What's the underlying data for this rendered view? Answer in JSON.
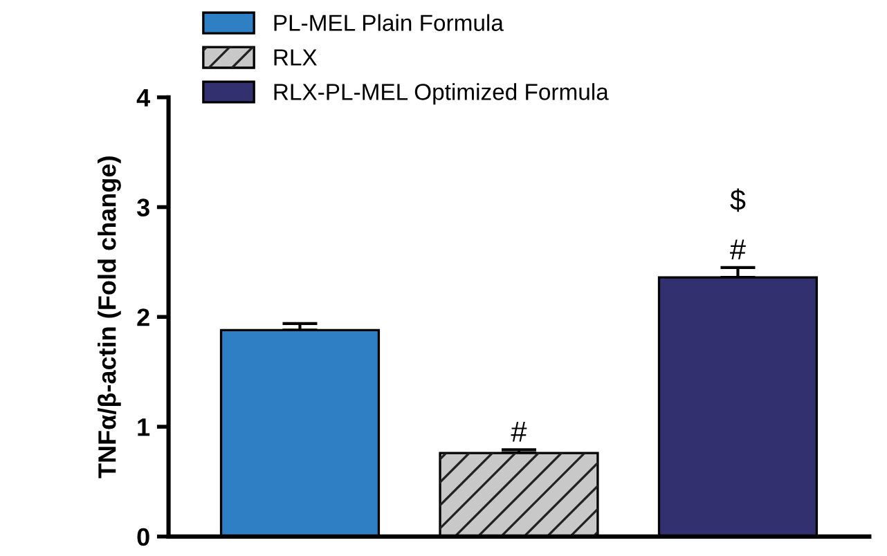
{
  "chart_data": {
    "type": "bar",
    "ylabel": "TNFα/β-actin (Fold change)",
    "categories": [
      null,
      null,
      null
    ],
    "series": [
      {
        "name": "PL-MEL Plain Formula",
        "color": "#2f7fc4",
        "values": [
          1.88,
          null,
          null
        ],
        "errors": [
          0.06,
          null,
          null
        ],
        "value_labels": [
          null,
          null,
          null
        ]
      },
      {
        "name": "RLX",
        "color": "#c8c8c8",
        "values": [
          null,
          0.76,
          null
        ],
        "errors": [
          null,
          0.03,
          null
        ],
        "value_labels": [
          null,
          "#",
          null
        ]
      },
      {
        "name": "RLX-PL-MEL Optimized Formula",
        "color": "#33306f",
        "values": [
          null,
          null,
          2.36
        ],
        "errors": [
          null,
          null,
          0.09
        ],
        "value_labels": [
          null,
          null,
          "$\n\n#"
        ]
      }
    ],
    "ylim": [
      0,
      4
    ],
    "yticks": [
      0,
      1,
      2,
      3,
      4
    ],
    "tick_labels": "y",
    "grid": false,
    "legend": "top left"
  }
}
